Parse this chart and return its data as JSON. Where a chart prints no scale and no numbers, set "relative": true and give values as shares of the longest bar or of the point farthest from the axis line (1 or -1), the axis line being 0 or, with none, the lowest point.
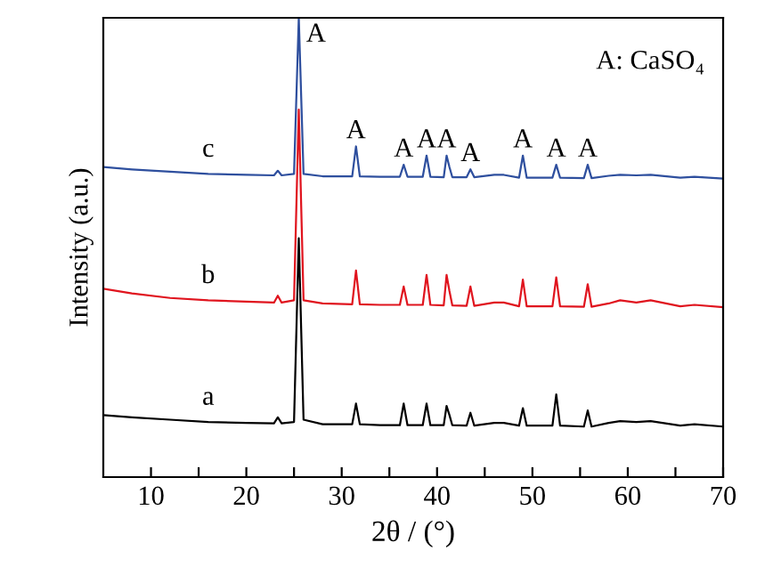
{
  "chart_data": {
    "type": "line",
    "relative": true,
    "xlabel": "2θ / (°)",
    "ylabel": "Intensity (a.u.)",
    "xlim": [
      5,
      70
    ],
    "xticks": [
      10,
      {
        "value": 15,
        "label": null
      },
      20,
      {
        "value": 25,
        "label": null
      },
      30,
      {
        "value": 35,
        "label": null
      },
      40,
      {
        "value": 45,
        "label": null
      },
      50,
      {
        "value": 55,
        "label": null
      },
      60,
      {
        "value": 65,
        "label": null
      },
      70
    ],
    "x": [
      5,
      8,
      12,
      16,
      20,
      22.9,
      23.3,
      23.7,
      25.0,
      25.5,
      26.0,
      28,
      31.1,
      31.5,
      31.9,
      34,
      36.1,
      36.5,
      36.9,
      38.5,
      38.9,
      39.3,
      40.7,
      41.0,
      41.3,
      41.6,
      43.1,
      43.5,
      43.9,
      46,
      47,
      48.6,
      49.0,
      49.4,
      52.1,
      52.5,
      52.9,
      55.4,
      55.8,
      56.2,
      58,
      59.2,
      60.9,
      62.4,
      65.5,
      67,
      70
    ],
    "series": [
      {
        "name": "a",
        "color": "#000000",
        "values": [
          0.135,
          0.13,
          0.125,
          0.12,
          0.118,
          0.117,
          0.13,
          0.117,
          0.12,
          0.52,
          0.125,
          0.115,
          0.115,
          0.16,
          0.115,
          0.113,
          0.113,
          0.16,
          0.113,
          0.113,
          0.16,
          0.113,
          0.113,
          0.155,
          0.135,
          0.113,
          0.112,
          0.14,
          0.112,
          0.118,
          0.118,
          0.112,
          0.15,
          0.112,
          0.112,
          0.18,
          0.112,
          0.11,
          0.145,
          0.11,
          0.118,
          0.122,
          0.12,
          0.122,
          0.112,
          0.115,
          0.11
        ]
      },
      {
        "name": "b",
        "color": "#e0141e",
        "values": [
          0.41,
          0.4,
          0.39,
          0.385,
          0.382,
          0.38,
          0.395,
          0.38,
          0.385,
          0.8,
          0.385,
          0.378,
          0.376,
          0.45,
          0.376,
          0.375,
          0.375,
          0.415,
          0.375,
          0.375,
          0.44,
          0.375,
          0.374,
          0.44,
          0.405,
          0.374,
          0.373,
          0.415,
          0.373,
          0.38,
          0.38,
          0.372,
          0.43,
          0.372,
          0.372,
          0.435,
          0.372,
          0.371,
          0.42,
          0.371,
          0.378,
          0.385,
          0.38,
          0.385,
          0.372,
          0.375,
          0.37
        ]
      },
      {
        "name": "c",
        "color": "#2e4f9e",
        "values": [
          0.675,
          0.67,
          0.665,
          0.66,
          0.658,
          0.657,
          0.667,
          0.657,
          0.66,
          1,
          0.66,
          0.655,
          0.655,
          0.72,
          0.655,
          0.654,
          0.654,
          0.68,
          0.654,
          0.654,
          0.7,
          0.654,
          0.653,
          0.7,
          0.675,
          0.653,
          0.653,
          0.67,
          0.653,
          0.658,
          0.658,
          0.652,
          0.7,
          0.652,
          0.652,
          0.68,
          0.652,
          0.651,
          0.68,
          0.651,
          0.656,
          0.658,
          0.657,
          0.658,
          0.652,
          0.654,
          0.65
        ]
      }
    ],
    "annotations": [
      "A: CaSO₄",
      {
        "text": "A",
        "x": 25.5,
        "y": 1
      },
      {
        "text": "A",
        "x": 31.5,
        "y": 0.72
      },
      {
        "text": "A",
        "x": 36.5,
        "y": 0.68
      },
      {
        "text": "A",
        "x": 38.9,
        "y": 0.7
      },
      {
        "text": "A",
        "x": 41.0,
        "y": 0.7
      },
      {
        "text": "A",
        "x": 43.5,
        "y": 0.67
      },
      {
        "text": "A",
        "x": 49.0,
        "y": 0.7
      },
      {
        "text": "A",
        "x": 52.5,
        "y": 0.68
      },
      {
        "text": "A",
        "x": 55.8,
        "y": 0.68
      }
    ],
    "legend": false,
    "grid": false
  }
}
